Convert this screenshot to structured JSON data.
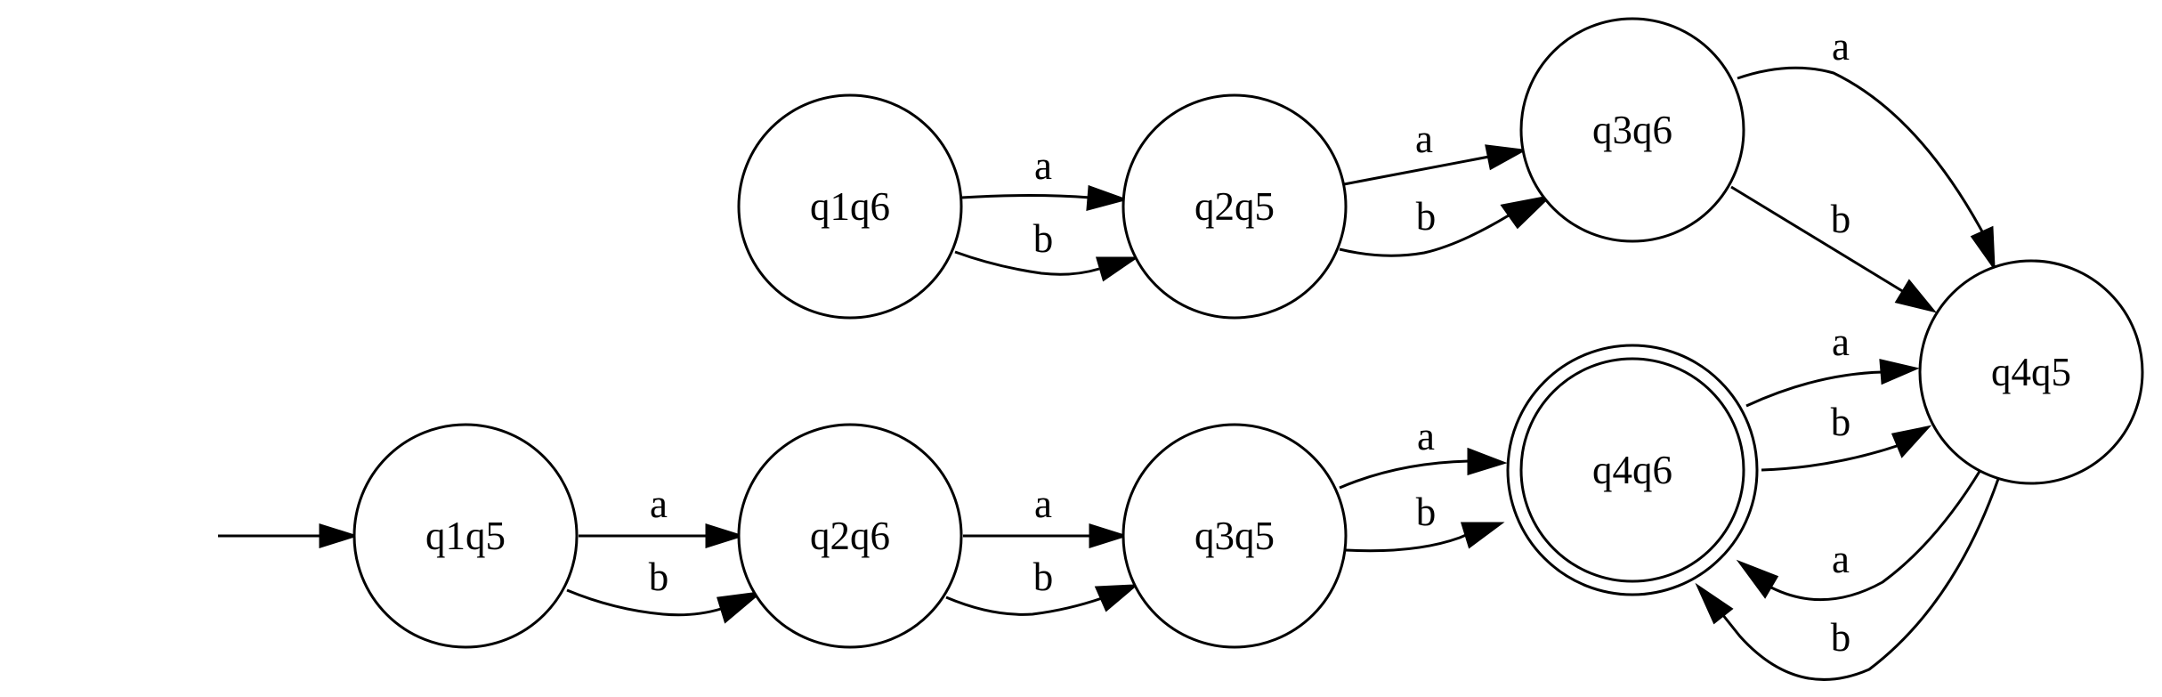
{
  "states": [
    {
      "id": "q1q6",
      "label": "q1q6",
      "accepting": false
    },
    {
      "id": "q2q5",
      "label": "q2q5",
      "accepting": false
    },
    {
      "id": "q3q6",
      "label": "q3q6",
      "accepting": false
    },
    {
      "id": "q4q5",
      "label": "q4q5",
      "accepting": false
    },
    {
      "id": "q4q6",
      "label": "q4q6",
      "accepting": true
    },
    {
      "id": "q1q5",
      "label": "q1q5",
      "accepting": false
    },
    {
      "id": "q2q6",
      "label": "q2q6",
      "accepting": false
    },
    {
      "id": "q3q5",
      "label": "q3q5",
      "accepting": false
    }
  ],
  "start_state": "q1q5",
  "transitions": [
    {
      "from": "q1q6",
      "to": "q2q5",
      "symbol": "a"
    },
    {
      "from": "q1q6",
      "to": "q2q5",
      "symbol": "b"
    },
    {
      "from": "q2q5",
      "to": "q3q6",
      "symbol": "a"
    },
    {
      "from": "q2q5",
      "to": "q3q6",
      "symbol": "b"
    },
    {
      "from": "q3q6",
      "to": "q4q5",
      "symbol": "a"
    },
    {
      "from": "q3q6",
      "to": "q4q5",
      "symbol": "b"
    },
    {
      "from": "q4q6",
      "to": "q4q5",
      "symbol": "a"
    },
    {
      "from": "q4q6",
      "to": "q4q5",
      "symbol": "b"
    },
    {
      "from": "q4q5",
      "to": "q4q6",
      "symbol": "a"
    },
    {
      "from": "q4q5",
      "to": "q4q6",
      "symbol": "b"
    },
    {
      "from": "q1q5",
      "to": "q2q6",
      "symbol": "a"
    },
    {
      "from": "q1q5",
      "to": "q2q6",
      "symbol": "b"
    },
    {
      "from": "q2q6",
      "to": "q3q5",
      "symbol": "a"
    },
    {
      "from": "q2q6",
      "to": "q3q5",
      "symbol": "b"
    },
    {
      "from": "q3q5",
      "to": "q4q6",
      "symbol": "a"
    },
    {
      "from": "q3q5",
      "to": "q4q6",
      "symbol": "b"
    }
  ]
}
